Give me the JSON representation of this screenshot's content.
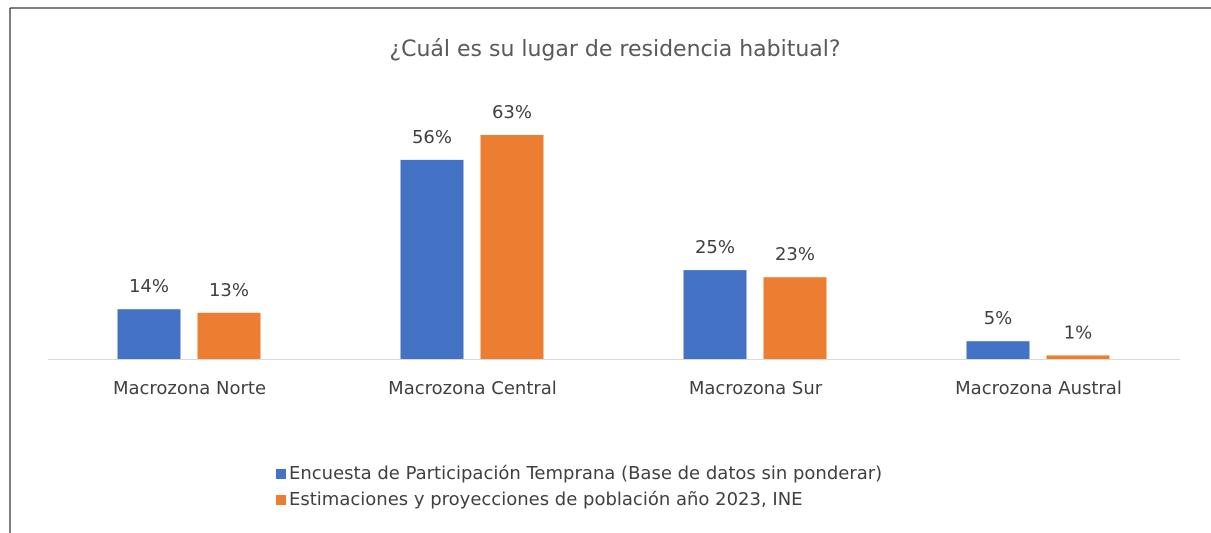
{
  "chart_data": {
    "type": "bar",
    "title": "¿Cuál es su lugar de residencia habitual?",
    "categories": [
      "Macrozona Norte",
      "Macrozona Central",
      "Macrozona Sur",
      "Macrozona Austral"
    ],
    "series": [
      {
        "name": "Encuesta de Participación Temprana  (Base de datos sin ponderar)",
        "color": "#4472c4",
        "values": [
          14,
          56,
          25,
          5
        ],
        "value_labels": [
          "14%",
          "56%",
          "25%",
          "5%"
        ]
      },
      {
        "name": "Estimaciones y proyecciones de población año 2023, INE",
        "color": "#ed7d31",
        "values": [
          13,
          63,
          23,
          1
        ],
        "value_labels": [
          "13%",
          "63%",
          "23%",
          "1%"
        ]
      }
    ],
    "legend": "bottom"
  }
}
